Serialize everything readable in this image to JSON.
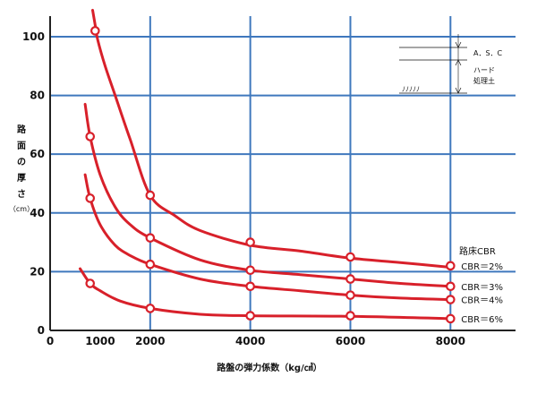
{
  "chart_data": {
    "type": "line",
    "xlabel": "路盤の弾力係数（kg/㎤）",
    "ylabel_chars": [
      "路",
      "面",
      "の",
      "厚",
      "さ"
    ],
    "ylabel_unit": "（cm）",
    "xlim": [
      0,
      9300
    ],
    "ylim": [
      0,
      107
    ],
    "x_ticks": [
      0,
      1000,
      2000,
      4000,
      6000,
      8000
    ],
    "x_tick_labels": [
      "0",
      "1000",
      "2000",
      "4000",
      "6000",
      "8000"
    ],
    "x_gridlines": [
      2000,
      4000,
      6000,
      8000
    ],
    "y_ticks": [
      0,
      20,
      40,
      60,
      80,
      100
    ],
    "y_tick_labels": [
      "0",
      "20",
      "40",
      "60",
      "80",
      "100"
    ],
    "grid": true,
    "legend_title": "路床CBR",
    "series": [
      {
        "name": "CBR＝2%",
        "color": "#d8202a",
        "curve": [
          [
            850,
            109
          ],
          [
            900,
            104
          ],
          [
            950,
            99
          ],
          [
            1100,
            90
          ],
          [
            1300,
            80
          ],
          [
            1600,
            65
          ],
          [
            2000,
            46
          ],
          [
            2500,
            39
          ],
          [
            3000,
            34
          ],
          [
            4000,
            29
          ],
          [
            5000,
            27
          ],
          [
            6000,
            24.6
          ],
          [
            7000,
            23.1
          ],
          [
            8000,
            21.5
          ]
        ],
        "markers": [
          [
            900,
            102
          ],
          [
            2000,
            46
          ],
          [
            4000,
            30
          ],
          [
            6000,
            25
          ],
          [
            8000,
            22
          ]
        ]
      },
      {
        "name": "CBR＝3%",
        "color": "#d8202a",
        "curve": [
          [
            700,
            77
          ],
          [
            800,
            66
          ],
          [
            1000,
            53
          ],
          [
            1300,
            42
          ],
          [
            1600,
            36
          ],
          [
            2000,
            31.5
          ],
          [
            3000,
            24
          ],
          [
            4000,
            20.5
          ],
          [
            5000,
            19
          ],
          [
            6000,
            17.5
          ],
          [
            7000,
            16
          ],
          [
            8000,
            15
          ]
        ],
        "markers": [
          [
            800,
            66
          ],
          [
            2000,
            31.5
          ],
          [
            4000,
            20.5
          ],
          [
            6000,
            17.5
          ],
          [
            8000,
            15
          ]
        ]
      },
      {
        "name": "CBR＝4%",
        "color": "#d8202a",
        "curve": [
          [
            700,
            53
          ],
          [
            800,
            45
          ],
          [
            1000,
            36
          ],
          [
            1300,
            29
          ],
          [
            1600,
            25.5
          ],
          [
            2000,
            22.5
          ],
          [
            3000,
            17.5
          ],
          [
            4000,
            15
          ],
          [
            5000,
            13.5
          ],
          [
            6000,
            12
          ],
          [
            7000,
            11
          ],
          [
            8000,
            10.5
          ]
        ],
        "markers": [
          [
            800,
            45
          ],
          [
            2000,
            22.5
          ],
          [
            4000,
            15
          ],
          [
            6000,
            12
          ],
          [
            8000,
            10.5
          ]
        ]
      },
      {
        "name": "CBR＝6%",
        "color": "#d8202a",
        "curve": [
          [
            600,
            21
          ],
          [
            800,
            16
          ],
          [
            1000,
            13.5
          ],
          [
            1400,
            10
          ],
          [
            2000,
            7.5
          ],
          [
            3000,
            5.5
          ],
          [
            4000,
            5
          ],
          [
            6000,
            4.8
          ],
          [
            8000,
            4
          ]
        ],
        "markers": [
          [
            800,
            16
          ],
          [
            2000,
            7.5
          ],
          [
            4000,
            5
          ],
          [
            6000,
            5
          ],
          [
            8000,
            4
          ]
        ]
      }
    ],
    "annotation": {
      "asc_label": "A．S．C",
      "hard_label_1": "ハード",
      "hard_label_2": "処理土",
      "subgrade_label": "ﾉﾉﾉﾉﾉ"
    }
  }
}
